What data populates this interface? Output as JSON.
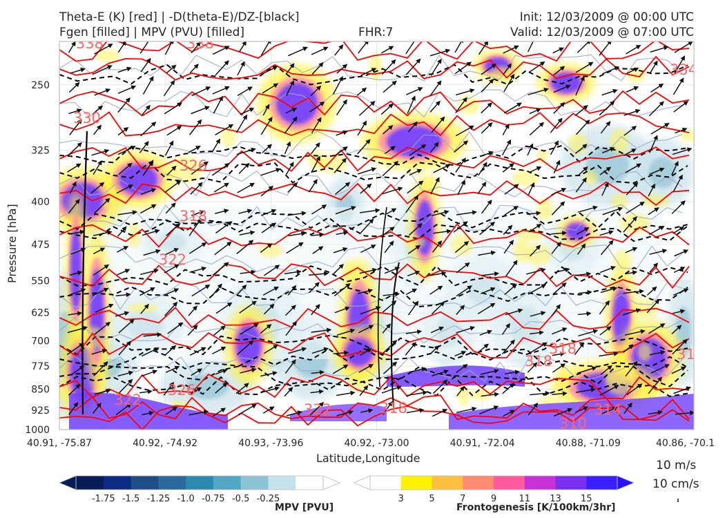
{
  "header": {
    "title_line1_left": "Theta-E (K) [red] | -D(theta-E)/DZ-[black]",
    "title_line2_left": "Fgen [filled] | MPV (PVU) [filled]",
    "fhr": "FHR:7",
    "init": "Init: 12/03/2009 @ 00:00 UTC",
    "valid": "Valid: 12/03/2009 @ 07:00 UTC"
  },
  "chart_data": {
    "type": "cross-section",
    "xlabel": "Latitude,Longitude",
    "ylabel": "Pressure [hPa]",
    "x_ticks": [
      "40.91, -75.87",
      "40.92, -74.92",
      "40.93, -73.96",
      "40.92, -73.00",
      "40.91, -72.04",
      "40.88, -71.09",
      "40.86, -70.1"
    ],
    "y_ticks": [
      250,
      325,
      400,
      475,
      550,
      625,
      700,
      775,
      850,
      925,
      1000
    ],
    "ylim": [
      1000,
      210
    ],
    "y_scale": "log-pressure",
    "grid": true,
    "theta_e_contour_labels": [
      "338",
      "338",
      "334",
      "330",
      "326",
      "318",
      "322",
      "318",
      "322",
      "326",
      "322",
      "318",
      "318",
      "310",
      "314",
      "318"
    ],
    "colorbars": [
      {
        "label": "MPV [PVU]",
        "ticks": [
          "-1.75",
          "-1.5",
          "-1.25",
          "-1.0",
          "-0.75",
          "-0.5",
          "-0.25"
        ],
        "colors": [
          "#081d58",
          "#0c2c84",
          "#1d4e8a",
          "#2a6a9e",
          "#2c89b0",
          "#53a7c6",
          "#8cc4d6",
          "#c4e2ea",
          "#ffffff"
        ]
      },
      {
        "label": "Frontogenesis [K/100km/3hr]",
        "ticks": [
          "3",
          "5",
          "7",
          "9",
          "11",
          "13",
          "15"
        ],
        "colors": [
          "#ffffff",
          "#fff200",
          "#ffc040",
          "#ff8c6e",
          "#ff5aa0",
          "#c830d8",
          "#7a30f0",
          "#3a20ff"
        ]
      }
    ],
    "vector_key": {
      "wind": "10 m/s",
      "vertical": "10 cm/s"
    },
    "colors": {
      "theta_e": "#ff0000",
      "ddz": "#000000",
      "mpv_line": "#8ca0c8",
      "fgen_low": "#fff200",
      "fgen_high": "#6b3cff"
    }
  }
}
